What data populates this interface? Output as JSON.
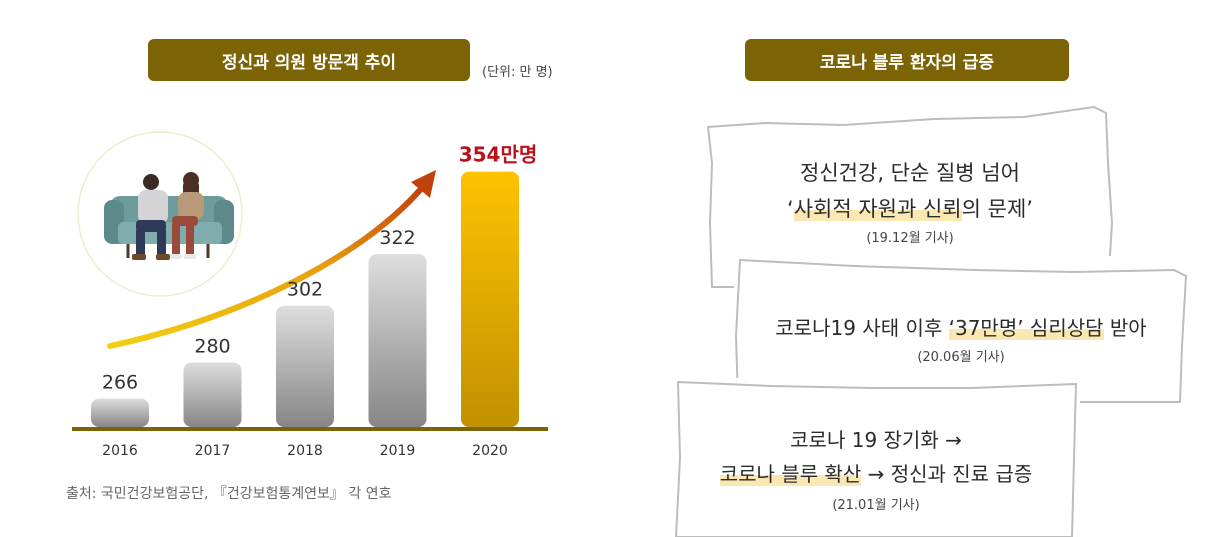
{
  "left_panel": {
    "title": "정신과 의원 방문객 추이",
    "unit": "(단위: 만 명)",
    "source": "출처: 국민건강보험공단, 『건강보험통계연보』 각 연호"
  },
  "right_panel": {
    "title": "코로나 블루 환자의 급증",
    "articles": [
      {
        "line1": "정신건강, 단순 질병 넘어",
        "line2_pre": "‘",
        "line2_hl": "사회적 자원과 신뢰",
        "line2_post": "의 문제’",
        "date": "(19.12월 기사)"
      },
      {
        "line1_pre": "코로나19 사태 이후 ",
        "line1_hl": "‘37만명’ 심리상담",
        "line1_post": " 받아",
        "date": "(20.06월 기사)"
      },
      {
        "line1": "코로나 19 장기화 →",
        "line2_hl": "코로나 블루 확산",
        "line2_post": " → 정신과 진료 급증",
        "date": "(21.01월 기사)"
      }
    ]
  },
  "chart_data": {
    "type": "bar",
    "categories": [
      "2016",
      "2017",
      "2018",
      "2019",
      "2020"
    ],
    "values": [
      266,
      280,
      302,
      322,
      354
    ],
    "data_labels": [
      "266",
      "280",
      "302",
      "322",
      "354만명"
    ],
    "title": "정신과 의원 방문객 추이",
    "xlabel": "",
    "ylabel": "",
    "highlight_index": 4,
    "colors": {
      "bar_gray_top": "#dcdcdc",
      "bar_gray_bottom": "#8a8a8a",
      "bar_gold_top": "#ffc100",
      "bar_gold_bottom": "#c29100",
      "highlight_label": "#b8121a",
      "axis": "#7b6306",
      "arrow_start": "#f1c70f",
      "arrow_end": "#c2430a"
    }
  },
  "icons": {
    "illustration": "couple-on-sofa-illustration",
    "trend": "upward-trend-arrow"
  }
}
